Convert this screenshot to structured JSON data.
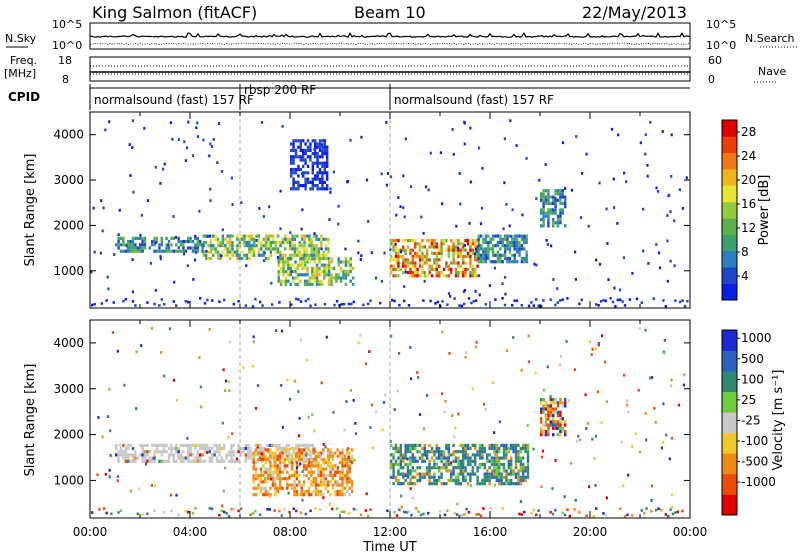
{
  "header": {
    "station": "King Salmon (fitACF)",
    "beam": "Beam 10",
    "date": "22/May/2013"
  },
  "labels": {
    "nsky": "N.Sky",
    "nsearch": "N.Search",
    "freq": "Freq.",
    "mhz": "[MHz]",
    "nave": "Nave",
    "cpid": "CPID",
    "time_axis": "Time UT",
    "range_axis": "Slant Range [km]",
    "power_label": "Power [dB]",
    "velocity_label": "Velocity  [m s⁻¹]"
  },
  "noise_ticks_left": [
    "10^5",
    "10^0"
  ],
  "noise_ticks_right": [
    "10^5",
    "10^0"
  ],
  "freq_ticks_left": [
    "18",
    "8"
  ],
  "freq_ticks_right": [
    "60",
    "0"
  ],
  "cpid_segments": [
    {
      "text": "normalsound (fast) 157 RF",
      "start_h": 0.0,
      "end_h": 6.0
    },
    {
      "text": "rbsp 200 RF",
      "start_h": 6.0,
      "end_h": 12.0
    },
    {
      "text": "normalsound (fast) 157 RF",
      "start_h": 12.0,
      "end_h": 24.0
    }
  ],
  "chart_data": [
    {
      "type": "heatmap",
      "name": "power",
      "x_range_hours": [
        0,
        24
      ],
      "y_range_km": [
        180,
        4500
      ],
      "x_ticks": [
        "00:00",
        "04:00",
        "08:00",
        "12:00",
        "16:00",
        "20:00",
        "00:00"
      ],
      "y_ticks": [
        1000,
        2000,
        3000,
        4000
      ],
      "ylabel": "Slant Range [km]",
      "colorbar": {
        "label": "Power [dB]",
        "ticks": [
          4,
          8,
          12,
          16,
          20,
          24,
          28
        ],
        "range": [
          0,
          30
        ],
        "colors": [
          "#0a1ee6",
          "#1e46c8",
          "#2a7ec2",
          "#3aa06e",
          "#5cb04a",
          "#92cc3c",
          "#e6e632",
          "#f0b41e",
          "#f07814",
          "#ee3c0a",
          "#e00000"
        ]
      },
      "echo_regions": [
        {
          "t0": 1.0,
          "t1": 4.5,
          "r0": 1450,
          "r1": 1750,
          "level": "medium"
        },
        {
          "t0": 4.5,
          "t1": 9.5,
          "r0": 1300,
          "r1": 1800,
          "level": "high"
        },
        {
          "t0": 7.5,
          "t1": 10.5,
          "r0": 700,
          "r1": 1300,
          "level": "high"
        },
        {
          "t0": 12.0,
          "t1": 15.5,
          "r0": 900,
          "r1": 1700,
          "level": "very high"
        },
        {
          "t0": 15.5,
          "t1": 17.5,
          "r0": 1200,
          "r1": 1800,
          "level": "medium"
        },
        {
          "t0": 8.0,
          "t1": 9.5,
          "r0": 2800,
          "r1": 3900,
          "level": "low"
        },
        {
          "t0": 18.0,
          "t1": 19.0,
          "r0": 2000,
          "r1": 2800,
          "level": "medium"
        }
      ]
    },
    {
      "type": "heatmap",
      "name": "velocity",
      "x_range_hours": [
        0,
        24
      ],
      "y_range_km": [
        180,
        4500
      ],
      "x_ticks": [
        "00:00",
        "04:00",
        "08:00",
        "12:00",
        "16:00",
        "20:00",
        "00:00"
      ],
      "y_ticks": [
        1000,
        2000,
        3000,
        4000
      ],
      "xlabel": "Time UT",
      "ylabel": "Slant Range [km]",
      "colorbar": {
        "label": "Velocity  [m s⁻¹]",
        "ticks": [
          "1000",
          "500",
          "100",
          "25",
          "-25",
          "-100",
          "-500",
          "-1000"
        ],
        "colors": [
          "#1a2ad0",
          "#2b62c0",
          "#2f8a70",
          "#6ccc3a",
          "#c8c8c8",
          "#f0c82a",
          "#f08a14",
          "#ee4a0c",
          "#e00000"
        ]
      },
      "echo_regions": [
        {
          "t0": 1.0,
          "t1": 9.0,
          "r0": 1450,
          "r1": 1800,
          "class": "ground scatter"
        },
        {
          "t0": 6.5,
          "t1": 10.5,
          "r0": 700,
          "r1": 1700,
          "class": "negative"
        },
        {
          "t0": 12.0,
          "t1": 17.5,
          "r0": 900,
          "r1": 1800,
          "class": "positive"
        },
        {
          "t0": 18.0,
          "t1": 19.0,
          "r0": 2000,
          "r1": 2800,
          "class": "mixed"
        }
      ]
    }
  ]
}
